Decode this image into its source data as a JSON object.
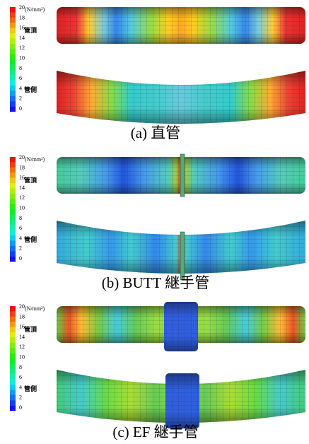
{
  "panels": [
    {
      "caption": "(a)  直管",
      "unit": "(N/mm²)",
      "colorbar_ticks": [
        20,
        18,
        16,
        14,
        12,
        10,
        8,
        6,
        4,
        2,
        0
      ],
      "top_label": "管頂",
      "side_label": "管側"
    },
    {
      "caption": "(b) BUTT 継手管",
      "unit": "(N/mm²)",
      "colorbar_ticks": [
        20,
        18,
        16,
        14,
        12,
        10,
        8,
        6,
        4,
        2,
        0
      ],
      "top_label": "管頂",
      "side_label": "管側"
    },
    {
      "caption": "(c) EF 継手管",
      "unit": "(N/mm²)",
      "colorbar_ticks": [
        20,
        18,
        16,
        14,
        12,
        10,
        8,
        6,
        4,
        2,
        0
      ],
      "top_label": "管頂",
      "side_label": "管側"
    }
  ]
}
